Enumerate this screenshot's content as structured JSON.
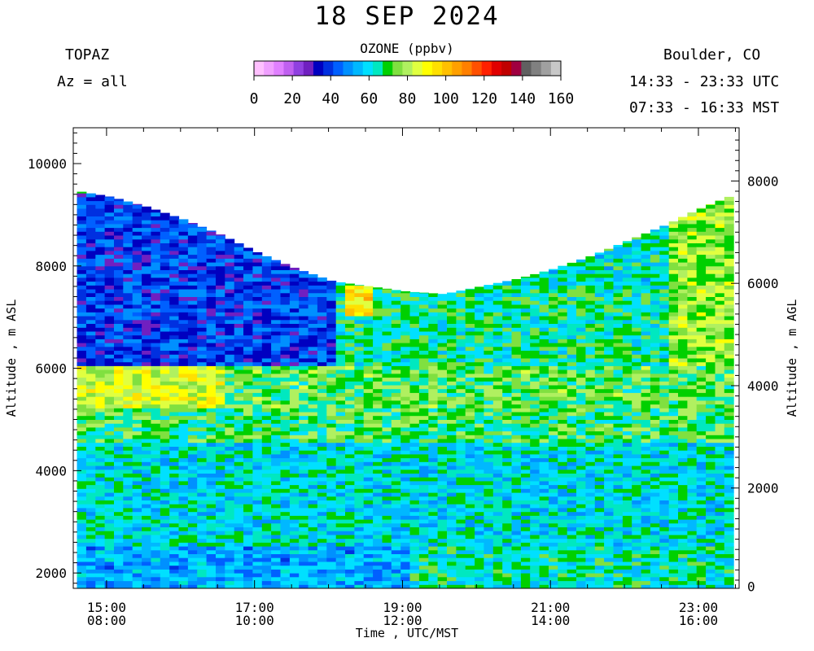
{
  "header": {
    "title": "18 SEP 2024",
    "instrument": "TOPAZ",
    "azimuth": "Az = all",
    "location": "Boulder, CO",
    "utc_range": "14:33 - 23:33 UTC",
    "mst_range": "07:33 - 16:33 MST"
  },
  "colorbar": {
    "title": "OZONE (ppbv)",
    "tick_labels": [
      "0",
      "20",
      "40",
      "60",
      "80",
      "100",
      "120",
      "140",
      "160"
    ],
    "range": [
      0,
      160
    ],
    "colors": [
      "#ffc0ff",
      "#f0a0ff",
      "#e080ff",
      "#c060f0",
      "#9040e0",
      "#7020c0",
      "#0000c0",
      "#0030e0",
      "#0060ff",
      "#0090ff",
      "#00b8ff",
      "#00e0ff",
      "#00e8c0",
      "#00d000",
      "#80e040",
      "#b0f060",
      "#e0ff40",
      "#ffff00",
      "#ffe000",
      "#ffc000",
      "#ffa000",
      "#ff8000",
      "#ff5000",
      "#ff2000",
      "#e00000",
      "#c00000",
      "#a00040",
      "#606060",
      "#808080",
      "#a0a0a0",
      "#c8c8c8"
    ]
  },
  "chart_data": {
    "type": "heatmap",
    "xlabel": "Time , UTC/MST",
    "ylabel_left": "Altitude , m ASL",
    "ylabel_right": "Altitude , m AGL",
    "x_range_utc_hours": [
      14.55,
      23.55
    ],
    "x_ticks_utc": [
      "15:00",
      "17:00",
      "19:00",
      "21:00",
      "23:00"
    ],
    "x_ticks_mst": [
      "08:00",
      "10:00",
      "12:00",
      "14:00",
      "16:00"
    ],
    "x_tick_hours": [
      15,
      17,
      19,
      21,
      23
    ],
    "y_left_range_m": [
      1700,
      10700
    ],
    "y_left_ticks": [
      2000,
      4000,
      6000,
      8000,
      10000
    ],
    "y_right_ticks": [
      0,
      2000,
      4000,
      6000,
      8000
    ],
    "surface_altitude_m": 1660,
    "z_label": "Ozone (ppbv)",
    "profile_tops": {
      "time_utc_hours": [
        14.6,
        15.0,
        15.5,
        16.0,
        16.5,
        17.0,
        17.5,
        18.0,
        18.5,
        19.0,
        19.5,
        20.0,
        20.5,
        21.0,
        21.5,
        22.0,
        22.5,
        23.0,
        23.35
      ],
      "top_m_asl": [
        9450,
        9350,
        9150,
        8900,
        8600,
        8250,
        7950,
        7700,
        7600,
        7500,
        7450,
        7600,
        7750,
        7950,
        8200,
        8500,
        8800,
        9150,
        9350
      ]
    },
    "ozone_layers": [
      {
        "alt_m_asl": [
          1700,
          2500
        ],
        "time_utc_hours": [
          14.55,
          19.0
        ],
        "ozone_ppbv": 52
      },
      {
        "alt_m_asl": [
          1700,
          2500
        ],
        "time_utc_hours": [
          19.0,
          23.55
        ],
        "ozone_ppbv": 64
      },
      {
        "alt_m_asl": [
          2500,
          4500
        ],
        "time_utc_hours": [
          14.55,
          23.55
        ],
        "ozone_ppbv": 60
      },
      {
        "alt_m_asl": [
          4500,
          5200
        ],
        "time_utc_hours": [
          14.55,
          23.55
        ],
        "ozone_ppbv": 70
      },
      {
        "alt_m_asl": [
          5200,
          6000
        ],
        "time_utc_hours": [
          14.55,
          16.5
        ],
        "ozone_ppbv": 85
      },
      {
        "alt_m_asl": [
          5200,
          6000
        ],
        "time_utc_hours": [
          16.5,
          23.55
        ],
        "ozone_ppbv": 72
      },
      {
        "alt_m_asl": [
          6000,
          9400
        ],
        "time_utc_hours": [
          14.55,
          18.0
        ],
        "ozone_ppbv": 40
      },
      {
        "alt_m_asl": [
          6000,
          7600
        ],
        "time_utc_hours": [
          18.0,
          23.55
        ],
        "ozone_ppbv": 66
      },
      {
        "alt_m_asl": [
          7000,
          7600
        ],
        "time_utc_hours": [
          18.2,
          18.5
        ],
        "ozone_ppbv": 95
      },
      {
        "alt_m_asl": [
          6000,
          9300
        ],
        "time_utc_hours": [
          22.5,
          23.55
        ],
        "ozone_ppbv": 78
      }
    ]
  }
}
